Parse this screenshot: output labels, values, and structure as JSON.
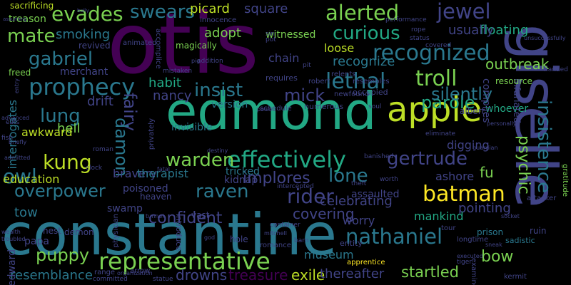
{
  "words": [
    {
      "text": "constantine",
      "color": "#2a788e"
    },
    {
      "text": "otis",
      "color": "#440154"
    },
    {
      "text": "edmond",
      "color": "#22a884"
    },
    {
      "text": "giselle",
      "color": "#414487"
    },
    {
      "text": "apple",
      "color": "#bddf26"
    },
    {
      "text": "representative",
      "color": "#7ad151"
    },
    {
      "text": "effectively",
      "color": "#22a884"
    },
    {
      "text": "prophecy",
      "color": "#2a788e"
    },
    {
      "text": "recognized",
      "color": "#2a788e"
    },
    {
      "text": "batman",
      "color": "#fde725"
    },
    {
      "text": "nathaniel",
      "color": "#2a788e"
    },
    {
      "text": "insistence",
      "color": "#2a788e"
    },
    {
      "text": "alerted",
      "color": "#7ad151"
    },
    {
      "text": "curious",
      "color": "#22a884"
    },
    {
      "text": "lethal",
      "color": "#2a788e"
    },
    {
      "text": "jewel",
      "color": "#414487"
    },
    {
      "text": "psychic",
      "color": "#7ad151"
    },
    {
      "text": "troll",
      "color": "#7ad151"
    },
    {
      "text": "rider",
      "color": "#414487"
    },
    {
      "text": "overpower",
      "color": "#2a788e"
    },
    {
      "text": "warden",
      "color": "#7ad151"
    },
    {
      "text": "insist",
      "color": "#2a788e"
    },
    {
      "text": "gertrude",
      "color": "#414487"
    },
    {
      "text": "raven",
      "color": "#2a788e"
    },
    {
      "text": "gabriel",
      "color": "#2a788e"
    },
    {
      "text": "swears",
      "color": "#2a788e"
    },
    {
      "text": "evades",
      "color": "#7ad151"
    },
    {
      "text": "mate",
      "color": "#7ad151"
    },
    {
      "text": "kung",
      "color": "#bddf26"
    },
    {
      "text": "owl",
      "color": "#2a788e"
    },
    {
      "text": "fairy",
      "color": "#414487"
    },
    {
      "text": "damon",
      "color": "#2a788e"
    },
    {
      "text": "puppy",
      "color": "#7ad151"
    },
    {
      "text": "lone",
      "color": "#2a788e"
    },
    {
      "text": "mick",
      "color": "#414487"
    },
    {
      "text": "parole",
      "color": "#22a884"
    },
    {
      "text": "silently",
      "color": "#2a788e"
    },
    {
      "text": "lung",
      "color": "#2a788e"
    },
    {
      "text": "confident",
      "color": "#414487"
    },
    {
      "text": "implores",
      "color": "#414487"
    },
    {
      "text": "covering",
      "color": "#414487"
    },
    {
      "text": "startled",
      "color": "#7ad151"
    },
    {
      "text": "bow",
      "color": "#7ad151"
    },
    {
      "text": "exile",
      "color": "#bddf26"
    },
    {
      "text": "drowns",
      "color": "#414487"
    },
    {
      "text": "treasure",
      "color": "#440154"
    },
    {
      "text": "resemblance",
      "color": "#2a788e"
    },
    {
      "text": "thereafter",
      "color": "#414487"
    },
    {
      "text": "floating",
      "color": "#22a884"
    },
    {
      "text": "outbreak",
      "color": "#7ad151"
    },
    {
      "text": "recognize",
      "color": "#2a788e"
    },
    {
      "text": "square",
      "color": "#414487"
    },
    {
      "text": "picard",
      "color": "#bddf26"
    },
    {
      "text": "adopt",
      "color": "#7ad151"
    },
    {
      "text": "smoking",
      "color": "#2a788e"
    },
    {
      "text": "usually",
      "color": "#414487"
    },
    {
      "text": "habit",
      "color": "#22a884"
    },
    {
      "text": "nancy",
      "color": "#414487"
    },
    {
      "text": "drift",
      "color": "#414487"
    },
    {
      "text": "hell",
      "color": "#7ad151"
    },
    {
      "text": "awkward",
      "color": "#bddf26"
    },
    {
      "text": "education",
      "color": "#bddf26"
    },
    {
      "text": "tow",
      "color": "#2a788e"
    },
    {
      "text": "fu",
      "color": "#7ad151"
    },
    {
      "text": "digging",
      "color": "#414487"
    },
    {
      "text": "whoever",
      "color": "#22a884"
    },
    {
      "text": "bravery",
      "color": "#414487"
    },
    {
      "text": "therapist",
      "color": "#2a788e"
    },
    {
      "text": "poisoned",
      "color": "#414487"
    },
    {
      "text": "celebrating",
      "color": "#414487"
    },
    {
      "text": "pointing",
      "color": "#414487"
    },
    {
      "text": "worry",
      "color": "#414487"
    },
    {
      "text": "mankind",
      "color": "#22a884"
    },
    {
      "text": "museum",
      "color": "#2a788e"
    },
    {
      "text": "tricked",
      "color": "#2a788e"
    },
    {
      "text": "assaulted",
      "color": "#414487"
    },
    {
      "text": "kidnap",
      "color": "#414487"
    },
    {
      "text": "ashore",
      "color": "#414487"
    },
    {
      "text": "invisible",
      "color": "#2a788e"
    },
    {
      "text": "version",
      "color": "#2a788e"
    },
    {
      "text": "interrogates",
      "color": "#2a788e"
    },
    {
      "text": "loose",
      "color": "#bddf26"
    },
    {
      "text": "witnessed",
      "color": "#7ad151"
    },
    {
      "text": "chain",
      "color": "#414487"
    },
    {
      "text": "magically",
      "color": "#7ad151"
    },
    {
      "text": "merchant",
      "color": "#414487"
    },
    {
      "text": "edward",
      "color": "#414487"
    },
    {
      "text": "papa",
      "color": "#414487"
    },
    {
      "text": "nest",
      "color": "#414487"
    },
    {
      "text": "demon",
      "color": "#414487"
    },
    {
      "text": "swamp",
      "color": "#414487"
    },
    {
      "text": "vast",
      "color": "#414487"
    },
    {
      "text": "sacrificing",
      "color": "#bddf26"
    },
    {
      "text": "treason",
      "color": "#7ad151"
    },
    {
      "text": "revived",
      "color": "#414487"
    },
    {
      "text": "animated",
      "color": "#414487"
    },
    {
      "text": "innocence",
      "color": "#414487"
    },
    {
      "text": "freed",
      "color": "#7ad151"
    },
    {
      "text": "complies",
      "color": "#414487"
    },
    {
      "text": "infuriated",
      "color": "#414487"
    },
    {
      "text": "resource",
      "color": "#7ad151"
    },
    {
      "text": "albert",
      "color": "#414487"
    },
    {
      "text": "longtime",
      "color": "#414487"
    },
    {
      "text": "apprentice",
      "color": "#fde725"
    },
    {
      "text": "gratitude",
      "color": "#7ad151"
    },
    {
      "text": "attacker",
      "color": "#414487"
    },
    {
      "text": "prison",
      "color": "#2a788e"
    },
    {
      "text": "ruin",
      "color": "#414487"
    },
    {
      "text": "sadistic",
      "color": "#2a788e"
    },
    {
      "text": "examine",
      "color": "#414487"
    },
    {
      "text": "kermit",
      "color": "#414487"
    },
    {
      "text": "tour",
      "color": "#414487"
    },
    {
      "text": "hole",
      "color": "#414487"
    },
    {
      "text": "romance",
      "color": "#414487"
    },
    {
      "text": "entity",
      "color": "#414487"
    },
    {
      "text": "requires",
      "color": "#414487"
    },
    {
      "text": "robert",
      "color": "#414487"
    },
    {
      "text": "numerous",
      "color": "#414487"
    },
    {
      "text": "newfound",
      "color": "#414487"
    },
    {
      "text": "occupied",
      "color": "#414487"
    },
    {
      "text": "schedule",
      "color": "#414487"
    },
    {
      "text": "heaven",
      "color": "#414487"
    },
    {
      "text": "introduce",
      "color": "#414487"
    },
    {
      "text": "range",
      "color": "#414487"
    },
    {
      "text": "statue",
      "color": "#414487"
    },
    {
      "text": "committed",
      "color": "#414487"
    },
    {
      "text": "arrow",
      "color": "#414487"
    },
    {
      "text": "addition",
      "color": "#414487"
    },
    {
      "text": "relents",
      "color": "#414487"
    },
    {
      "text": "resembles",
      "color": "#414487"
    },
    {
      "text": "performance",
      "color": "#414487"
    },
    {
      "text": "status",
      "color": "#414487"
    },
    {
      "text": "covered",
      "color": "#414487"
    },
    {
      "text": "handed",
      "color": "#414487"
    },
    {
      "text": "unsuccessfully",
      "color": "#414487"
    },
    {
      "text": "rope",
      "color": "#414487"
    },
    {
      "text": "accomplice",
      "color": "#414487"
    },
    {
      "text": "mistaken",
      "color": "#414487"
    },
    {
      "text": "physician",
      "color": "#414487"
    },
    {
      "text": "privately",
      "color": "#414487"
    },
    {
      "text": "eliminate",
      "color": "#414487"
    },
    {
      "text": "personally",
      "color": "#414487"
    },
    {
      "text": "guardian",
      "color": "#414487"
    },
    {
      "text": "organization",
      "color": "#414487"
    },
    {
      "text": "executed",
      "color": "#414487"
    },
    {
      "text": "sneak",
      "color": "#414487"
    },
    {
      "text": "tiger",
      "color": "#414487"
    },
    {
      "text": "barn",
      "color": "#414487"
    },
    {
      "text": "banished",
      "color": "#414487"
    },
    {
      "text": "socket",
      "color": "#414487"
    },
    {
      "text": "theft",
      "color": "#414487"
    },
    {
      "text": "worth",
      "color": "#414487"
    },
    {
      "text": "soul",
      "color": "#414487"
    },
    {
      "text": "intercepted",
      "color": "#414487"
    },
    {
      "text": "destiny",
      "color": "#414487"
    },
    {
      "text": "poison",
      "color": "#414487"
    },
    {
      "text": "fatal",
      "color": "#414487"
    },
    {
      "text": "roman",
      "color": "#414487"
    },
    {
      "text": "clock",
      "color": "#414487"
    },
    {
      "text": "container",
      "color": "#414487"
    },
    {
      "text": "mitchell",
      "color": "#414487"
    },
    {
      "text": "tunnel",
      "color": "#414487"
    },
    {
      "text": "god",
      "color": "#414487"
    },
    {
      "text": "eats",
      "color": "#414487"
    },
    {
      "text": "fish",
      "color": "#414487"
    },
    {
      "text": "advanced",
      "color": "#414487"
    },
    {
      "text": "briefly",
      "color": "#414487"
    },
    {
      "text": "admitted",
      "color": "#414487"
    },
    {
      "text": "wealth",
      "color": "#414487"
    },
    {
      "text": "troubled",
      "color": "#414487"
    },
    {
      "text": "assuming",
      "color": "#414487"
    },
    {
      "text": "bully",
      "color": "#414487"
    },
    {
      "text": "entry",
      "color": "#414487"
    },
    {
      "text": "sin",
      "color": "#414487"
    },
    {
      "text": "pot",
      "color": "#414487"
    },
    {
      "text": "pit",
      "color": "#414487"
    },
    {
      "text": "pig",
      "color": "#414487"
    }
  ]
}
